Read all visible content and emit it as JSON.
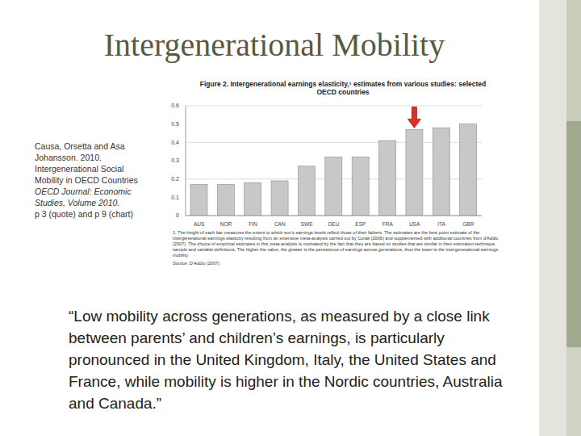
{
  "slide": {
    "title": "Intergenerational Mobility",
    "citation_lines": [
      "Causa, Orsetta and Asa",
      "Johansson. 2010.",
      "Intergenerational Social",
      "Mobility in OECD Countries",
      "OECD Journal: Economic",
      "Studies, Volume 2010.",
      "p 3 (quote) and p 9 (chart)"
    ],
    "quote_lines": [
      "“Low mobility across generations, as measured by a close link",
      "between parents’ and children’s earnings, is particularly",
      "pronounced in the United Kingdom, Italy, the United States and",
      "France, while mobility is higher in the Nordic countries, Australia",
      "and Canada.”"
    ]
  },
  "chart_data": {
    "type": "bar",
    "title": "Figure 2. Intergenerational earnings elasticity,¹ estimates from various studies: selected OECD countries",
    "categories": [
      "AUS",
      "NOR",
      "FIN",
      "CAN",
      "SWE",
      "DEU",
      "ESP",
      "FRA",
      "USA",
      "ITA",
      "GBR"
    ],
    "values": [
      0.17,
      0.17,
      0.18,
      0.19,
      0.27,
      0.32,
      0.32,
      0.41,
      0.47,
      0.48,
      0.5
    ],
    "color": "#c8c8c8",
    "ylim": [
      0,
      0.6
    ],
    "yticks": [
      0,
      0.1,
      0.2,
      0.3,
      0.4,
      0.5,
      0.6
    ],
    "grid": true,
    "annotations": [
      "1. The height of each bar measures the extent to which son's earnings levels reflect those of their fathers. The estimates are the best point estimate of the intergenerational earnings elasticity resulting from an extensive meta-analysis carried out by Corak (2006) and supplemented with additional countries from d'Addio (2007). The choice of empirical estimates in this meta-analysis is motivated by the fact that they are based on studies that are similar in their estimation technique, sample and variable definitions. The higher the value, the greater is the persistence of earnings across generations, thus the lower is the intergenerational earnings mobility.",
      "Source: D'Addio (2007)."
    ]
  }
}
